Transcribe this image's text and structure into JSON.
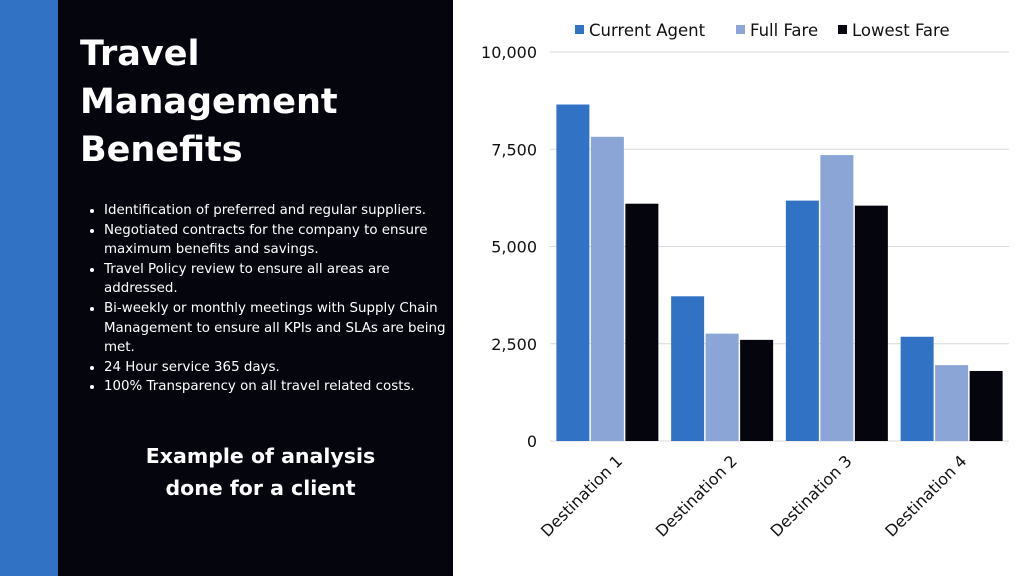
{
  "slide": {
    "title": "Travel Management Benefits",
    "bullets": [
      "Identification of preferred and regular suppliers.",
      "Negotiated contracts for the company to ensure maximum benefits and savings.",
      "Travel Policy review to ensure all areas are addressed.",
      "Bi-weekly or monthly meetings with Supply Chain Management to ensure all KPIs and SLAs are being met.",
      "24 Hour service 365 days.",
      "100% Transparency on all travel related costs."
    ],
    "caption": "Example of analysis done for a client"
  },
  "colors": {
    "accent": "#3272c5",
    "panel": "#05060d",
    "current_agent": "#3272c5",
    "full_fare": "#8aa5d6",
    "lowest_fare": "#05060d",
    "grid": "#d9d9d9"
  },
  "chart_data": {
    "type": "bar",
    "categories": [
      "Destination 1",
      "Destination 2",
      "Destination 3",
      "Destination 4"
    ],
    "series": [
      {
        "name": "Current Agent",
        "values": [
          8650,
          3720,
          6180,
          2680
        ]
      },
      {
        "name": "Full Fare",
        "values": [
          7820,
          2760,
          7350,
          1950
        ]
      },
      {
        "name": "Lowest Fare",
        "values": [
          6100,
          2600,
          6050,
          1800
        ]
      }
    ],
    "ylim": [
      0,
      10000
    ],
    "yticks": [
      "0",
      "2,500",
      "5,000",
      "7,500",
      "10,000"
    ],
    "ytick_values": [
      0,
      2500,
      5000,
      7500,
      10000
    ],
    "legend_position": "top",
    "grid": true
  }
}
